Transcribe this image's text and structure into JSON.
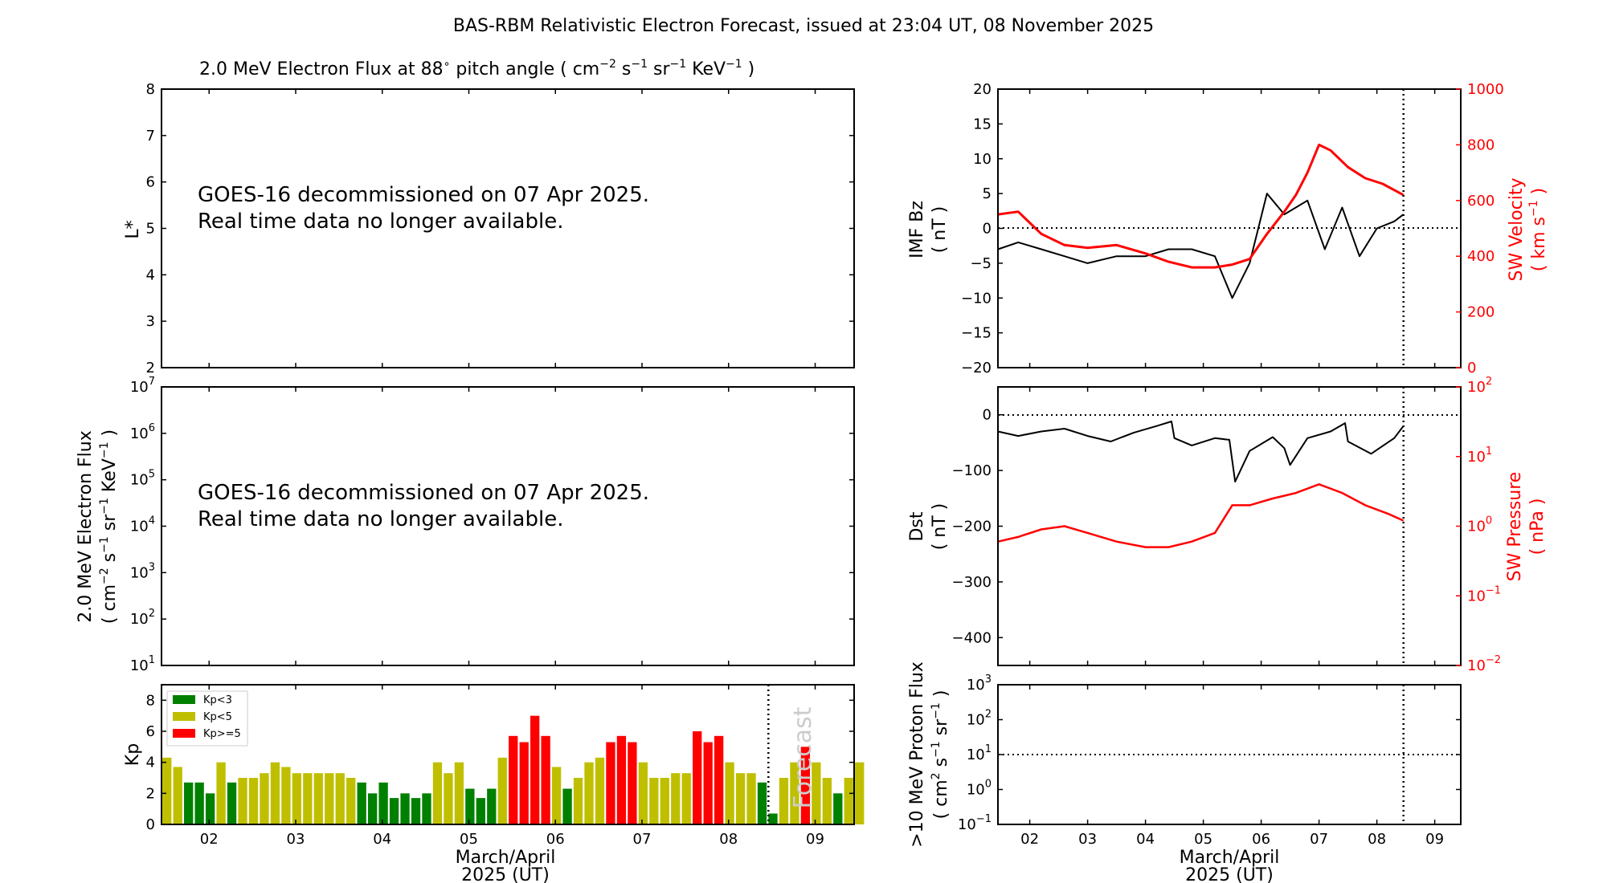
{
  "figure": {
    "title": "BAS-RBM Relativistic Electron Forecast, issued at 23:04 UT, 08 November 2025",
    "panel1_title": "2.0 MeV Electron Flux at 88",
    "panel1_title_units": "pitch angle ( cm",
    "notice_line1": "GOES-16 decommissioned on 07 Apr 2025.",
    "notice_line2": "Real time data no longer available.",
    "forecast_label": "Forecast",
    "xlabel_line1": "March/April",
    "xlabel_line2": "2025 (UT)",
    "day_ticks": [
      "02",
      "03",
      "04",
      "05",
      "06",
      "07",
      "08",
      "09"
    ]
  },
  "colors": {
    "kp_low": "#008000",
    "kp_mid": "#bfbf00",
    "kp_high": "#ff0000",
    "primary_line": "#000000",
    "secondary_line": "#ff0000"
  },
  "chart_data": [
    {
      "type": "line",
      "panel": "L* panel",
      "ylabel": "L*",
      "ylim": [
        2,
        8
      ],
      "yticks": [
        2,
        3,
        4,
        5,
        6,
        7,
        8
      ],
      "notes": "no data plotted"
    },
    {
      "type": "line",
      "panel": "electron flux panel",
      "ylabel": "2.0 MeV Electron Flux ( cm-2 s-1 sr-1 KeV-1 )",
      "yscale": "log",
      "ylim": [
        10,
        10000000
      ],
      "ytick_exponents": [
        1,
        2,
        3,
        4,
        5,
        6,
        7
      ],
      "notes": "no data plotted"
    },
    {
      "type": "bar",
      "panel": "Kp panel",
      "ylabel": "Kp",
      "ylim": [
        0,
        9
      ],
      "yticks": [
        0,
        2,
        4,
        6,
        8
      ],
      "xlim_days": [
        1.45,
        9.45
      ],
      "forecast_start_day": 8.46,
      "legend": [
        "Kp<3",
        "Kp<5",
        "Kp>=5"
      ],
      "values": [
        4.3,
        3.7,
        2.7,
        2.7,
        2.0,
        4.0,
        2.7,
        3.0,
        3.0,
        3.3,
        4.0,
        3.7,
        3.3,
        3.3,
        3.3,
        3.3,
        3.3,
        3.0,
        2.7,
        2.0,
        2.7,
        1.7,
        2.0,
        1.7,
        2.0,
        4.0,
        3.3,
        4.0,
        2.3,
        1.7,
        2.3,
        4.3,
        5.7,
        5.3,
        7.0,
        5.7,
        3.7,
        2.3,
        3.0,
        4.0,
        4.3,
        5.3,
        5.7,
        5.3,
        4.0,
        3.0,
        3.0,
        3.3,
        3.3,
        6.0,
        5.3,
        5.7,
        4.0,
        3.3,
        3.3,
        2.7,
        0.7,
        3.0,
        4.0,
        5.0,
        4.0,
        3.0,
        2.0,
        3.0,
        4.0
      ]
    },
    {
      "type": "line",
      "panel": "IMF Bz / SW velocity panel",
      "ylabel": "IMF Bz ( nT )",
      "ylabel2": "SW Velocity ( km s-1 )",
      "ylim": [
        -20,
        20
      ],
      "ylim2": [
        0,
        1000
      ],
      "yticks": [
        -20,
        -15,
        -10,
        -5,
        0,
        5,
        10,
        15,
        20
      ],
      "yticks2": [
        0,
        200,
        400,
        600,
        800,
        1000
      ],
      "series": [
        {
          "name": "IMF Bz",
          "x": [
            1.45,
            1.8,
            2.2,
            2.6,
            3.0,
            3.5,
            4.0,
            4.4,
            4.8,
            5.2,
            5.5,
            5.8,
            6.1,
            6.4,
            6.8,
            7.1,
            7.4,
            7.7,
            8.0,
            8.3,
            8.46
          ],
          "values": [
            -3,
            -2,
            -3,
            -4,
            -5,
            -4,
            -4,
            -3,
            -3,
            -4,
            -10,
            -5,
            5,
            2,
            4,
            -3,
            3,
            -4,
            0,
            1,
            2
          ]
        },
        {
          "name": "SW Velocity",
          "x": [
            1.45,
            1.8,
            2.2,
            2.6,
            3.0,
            3.5,
            4.0,
            4.4,
            4.8,
            5.2,
            5.5,
            5.8,
            6.1,
            6.4,
            6.6,
            6.8,
            7.0,
            7.2,
            7.5,
            7.8,
            8.1,
            8.46
          ],
          "values": [
            550,
            560,
            480,
            440,
            430,
            440,
            410,
            380,
            360,
            360,
            370,
            390,
            480,
            560,
            620,
            700,
            800,
            780,
            720,
            680,
            660,
            620
          ]
        }
      ]
    },
    {
      "type": "line",
      "panel": "Dst / SW pressure panel",
      "ylabel": "Dst ( nT )",
      "ylabel2": "SW Pressure ( nPa )",
      "ylim": [
        -450,
        50
      ],
      "yticks": [
        -400,
        -300,
        -200,
        -100,
        0
      ],
      "yscale2": "log",
      "ylim2": [
        0.01,
        100
      ],
      "ytick2_exponents": [
        -2,
        -1,
        0,
        1,
        2
      ],
      "series": [
        {
          "name": "Dst",
          "x": [
            1.45,
            1.8,
            2.2,
            2.6,
            3.0,
            3.4,
            3.8,
            4.2,
            4.45,
            4.5,
            4.8,
            5.2,
            5.45,
            5.55,
            5.8,
            6.2,
            6.4,
            6.5,
            6.8,
            7.2,
            7.45,
            7.5,
            7.9,
            8.3,
            8.46
          ],
          "values": [
            -30,
            -38,
            -30,
            -25,
            -38,
            -48,
            -32,
            -20,
            -12,
            -42,
            -55,
            -42,
            -45,
            -120,
            -65,
            -40,
            -60,
            -90,
            -42,
            -30,
            -15,
            -48,
            -70,
            -42,
            -20
          ]
        },
        {
          "name": "SW Pressure",
          "x": [
            1.45,
            1.8,
            2.2,
            2.6,
            3.0,
            3.5,
            4.0,
            4.4,
            4.8,
            5.2,
            5.5,
            5.8,
            6.2,
            6.6,
            7.0,
            7.4,
            7.8,
            8.2,
            8.46
          ],
          "values": [
            0.6,
            0.7,
            0.9,
            1.0,
            0.8,
            0.6,
            0.5,
            0.5,
            0.6,
            0.8,
            2.0,
            2.0,
            2.5,
            3.0,
            4.0,
            3.0,
            2.0,
            1.5,
            1.2
          ]
        }
      ]
    },
    {
      "type": "line",
      "panel": "proton flux panel",
      "ylabel": ">10 MeV Proton Flux ( cm2 s-1 sr-1 )",
      "yscale": "log",
      "ylim": [
        0.1,
        1000
      ],
      "ytick_exponents": [
        -1,
        0,
        1,
        2,
        3
      ],
      "threshold": 10,
      "notes": "no data plotted"
    }
  ]
}
